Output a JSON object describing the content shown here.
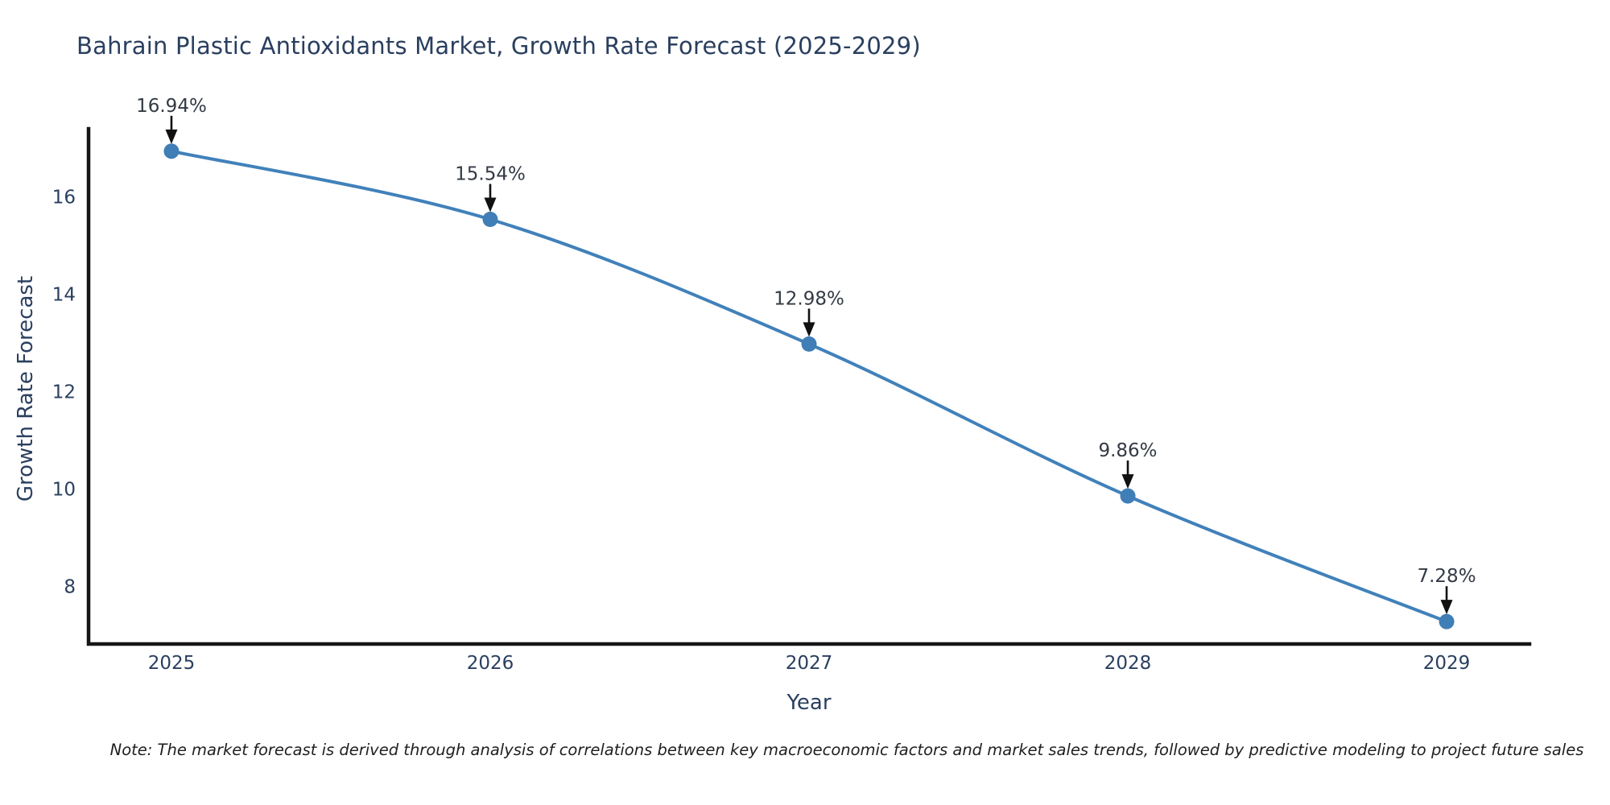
{
  "page": {
    "note": "Note: The market forecast is derived through analysis of correlations between key macroeconomic factors and market sales trends, followed by predictive modeling to project future sales"
  },
  "chart_data": {
    "type": "line",
    "title": "Bahrain Plastic Antioxidants Market, Growth Rate Forecast (2025-2029)",
    "xlabel": "Year",
    "ylabel": "Growth Rate Forecast",
    "x": [
      2025,
      2026,
      2027,
      2028,
      2029
    ],
    "series": [
      {
        "name": "Growth Rate Forecast",
        "values": [
          16.94,
          15.54,
          12.98,
          9.86,
          7.28
        ],
        "point_labels": [
          "16.94%",
          "15.54%",
          "12.98%",
          "9.86%",
          "7.28%"
        ]
      }
    ],
    "line_shape": "spline",
    "markers_on": true,
    "grid": false,
    "legend_position": "none",
    "xlim": [
      2024.74,
      2029.26
    ],
    "ylim": [
      6.82,
      17.4
    ],
    "xticks": [
      "2025",
      "2026",
      "2027",
      "2028",
      "2029"
    ],
    "yticks": [
      8,
      10,
      12,
      14,
      16
    ],
    "annotations_arrow": "down",
    "colors": {
      "line": "#4181ba",
      "marker": "#3f7eb6",
      "axis": "#161616",
      "tick_text": "#2a3f5f",
      "title_text": "#2a3f5f",
      "annotation_text": "#333a45",
      "arrow": "#111111",
      "background": "#ffffff"
    }
  }
}
